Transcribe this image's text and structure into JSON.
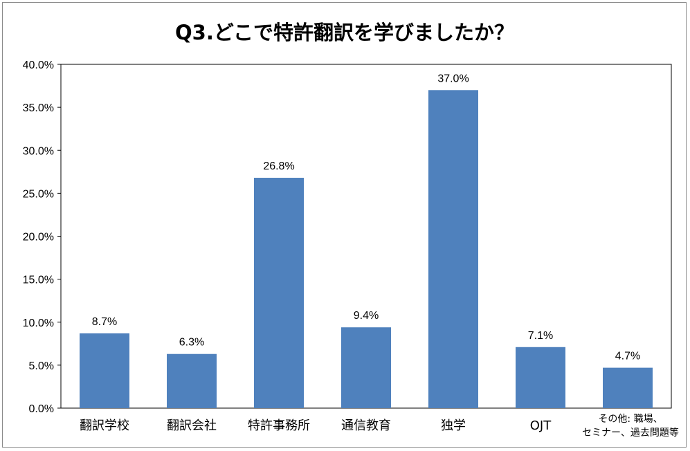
{
  "chart_data": {
    "type": "bar",
    "title": "Q3.どこで特許翻訳を学びましたか？",
    "categories": [
      "翻訳学校",
      "翻訳会社",
      "特許事務所",
      "通信教育",
      "独学",
      "OJT",
      [
        "その他: 職場、",
        "セミナー、過去問題等"
      ]
    ],
    "values": [
      8.7,
      6.3,
      26.8,
      9.4,
      37.0,
      7.1,
      4.7
    ],
    "value_labels": [
      "8.7%",
      "6.3%",
      "26.8%",
      "9.4%",
      "37.0%",
      "7.1%",
      "4.7%"
    ],
    "y_ticks": [
      "0.0%",
      "5.0%",
      "10.0%",
      "15.0%",
      "20.0%",
      "25.0%",
      "30.0%",
      "35.0%",
      "40.0%"
    ],
    "ylim": [
      0,
      40
    ],
    "xlabel": "",
    "ylabel": "",
    "grid": false,
    "legend": "none",
    "bar_color": "#4f81bd"
  }
}
